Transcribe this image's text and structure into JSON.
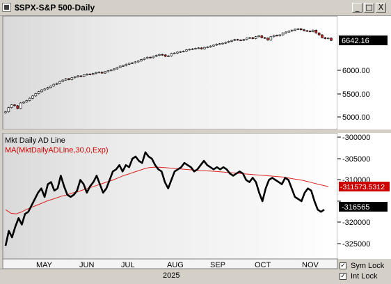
{
  "window": {
    "title": "$SPX-S&P 500-Daily",
    "buttons": {
      "minimize": "_",
      "maximize": "□",
      "close": "X"
    }
  },
  "upper_panel": {
    "last_price_label": "6642.16",
    "y_ticks": [
      "6000.00",
      "5500.00",
      "5000.00"
    ]
  },
  "lower_panel": {
    "indicator_label": "Mkt Daily AD Line",
    "ma_label": "MA(MktDailyADLine,30,0,Exp)",
    "ma_value_label": "-311573.5312",
    "last_value_label": "-316565",
    "y_ticks": [
      "-300000",
      "-305000",
      "-310000",
      "-315000",
      "-320000",
      "-325000"
    ]
  },
  "x_axis": {
    "months": [
      "MAY",
      "JUN",
      "JUL",
      "AUG",
      "SEP",
      "OCT",
      "NOV"
    ],
    "year": "2025"
  },
  "options": [
    {
      "label": "Sym Lock",
      "checked": true
    },
    {
      "label": "Int Lock",
      "checked": true
    }
  ],
  "colors": {
    "up": "#ffffff",
    "down": "#cc2222",
    "ad_line": "#000000",
    "ma_line": "#dd2222",
    "last_price_bg": "#000000",
    "ma_value_bg": "#cc0000"
  },
  "chart_data": [
    {
      "type": "candlestick",
      "y_ticks": [
        5000,
        5500,
        6000
      ],
      "last_value": 6642.16,
      "series": [
        {
          "values": [
            5110,
            5200,
            5260,
            5240,
            5180,
            5300,
            5320,
            5350,
            5400,
            5450,
            5500,
            5540,
            5580,
            5600,
            5630,
            5660,
            5700,
            5720,
            5760,
            5790,
            5820,
            5800,
            5840,
            5860,
            5880,
            5870,
            5900,
            5920,
            5910,
            5930,
            5950,
            5960,
            5940,
            5970,
            5990,
            6010,
            6030,
            6060,
            6090,
            6100,
            6130,
            6150,
            6160,
            6180,
            6200,
            6230,
            6260,
            6280,
            6270,
            6300,
            6320,
            6340,
            6330,
            6300,
            6310,
            6360,
            6370,
            6390,
            6400,
            6410,
            6440,
            6450,
            6460,
            6470,
            6480,
            6460,
            6490,
            6500,
            6520,
            6540,
            6560,
            6570,
            6580,
            6600,
            6620,
            6640,
            6660,
            6650,
            6640,
            6660,
            6690,
            6700,
            6680,
            6720,
            6740,
            6700,
            6690,
            6650,
            6720,
            6750,
            6740,
            6760,
            6800,
            6820,
            6840,
            6860,
            6880,
            6890,
            6870,
            6850,
            6840,
            6830,
            6860,
            6800,
            6760,
            6700,
            6680,
            6690,
            6640
          ]
        }
      ]
    },
    {
      "type": "line",
      "y_ticks": [
        -300000,
        -305000,
        -310000,
        -315000,
        -320000,
        -325000
      ],
      "series": [
        {
          "name": "Mkt Daily AD Line",
          "values": [
            -325500,
            -322000,
            -323500,
            -321000,
            -319000,
            -320500,
            -318000,
            -317500,
            -316000,
            -314500,
            -313000,
            -312000,
            -314000,
            -311000,
            -310500,
            -312500,
            -312000,
            -309000,
            -311500,
            -313500,
            -314000,
            -313500,
            -312500,
            -310000,
            -311000,
            -313000,
            -311500,
            -310500,
            -309000,
            -311000,
            -313000,
            -312000,
            -310000,
            -308000,
            -307500,
            -306500,
            -308000,
            -306500,
            -307000,
            -305000,
            -304500,
            -305500,
            -306000,
            -303500,
            -304500,
            -305000,
            -306500,
            -307500,
            -308000,
            -310500,
            -312000,
            -310000,
            -308000,
            -307500,
            -307000,
            -306000,
            -306500,
            -307000,
            -308000,
            -307500,
            -306500,
            -305500,
            -306500,
            -307000,
            -307500,
            -307000,
            -307500,
            -307000,
            -307500,
            -308500,
            -309000,
            -308500,
            -308000,
            -308500,
            -310000,
            -310500,
            -309500,
            -310500,
            -313000,
            -315000,
            -312000,
            -310000,
            -309500,
            -310000,
            -310500,
            -311000,
            -309500,
            -310000,
            -312000,
            -314000,
            -314500,
            -315000,
            -313000,
            -312000,
            -312500,
            -315000,
            -317000,
            -317500,
            -317000
          ]
        },
        {
          "name": "MA(MktDailyADLine,30,0,Exp)",
          "values": [
            -317000,
            -317800,
            -318000,
            -317600,
            -317000,
            -316500,
            -316000,
            -315500,
            -315000,
            -314600,
            -314200,
            -313800,
            -313500,
            -313100,
            -312800,
            -312400,
            -312000,
            -311600,
            -311200,
            -310800,
            -310400,
            -310000,
            -309500,
            -309000,
            -308600,
            -308200,
            -307800,
            -307400,
            -307100,
            -307000,
            -307000,
            -307100,
            -307200,
            -307300,
            -307400,
            -307500,
            -307600,
            -307700,
            -307800,
            -307850,
            -307900,
            -308000,
            -308100,
            -308200,
            -308300,
            -308400,
            -308500,
            -308600,
            -308700,
            -308800,
            -308900,
            -309000,
            -309100,
            -309200,
            -309300,
            -309500,
            -309700,
            -309900,
            -310100,
            -310400,
            -310700,
            -311000,
            -311300,
            -311573.5312
          ]
        }
      ],
      "last_value": -316565,
      "ma_last_value": -311573.5312
    }
  ]
}
